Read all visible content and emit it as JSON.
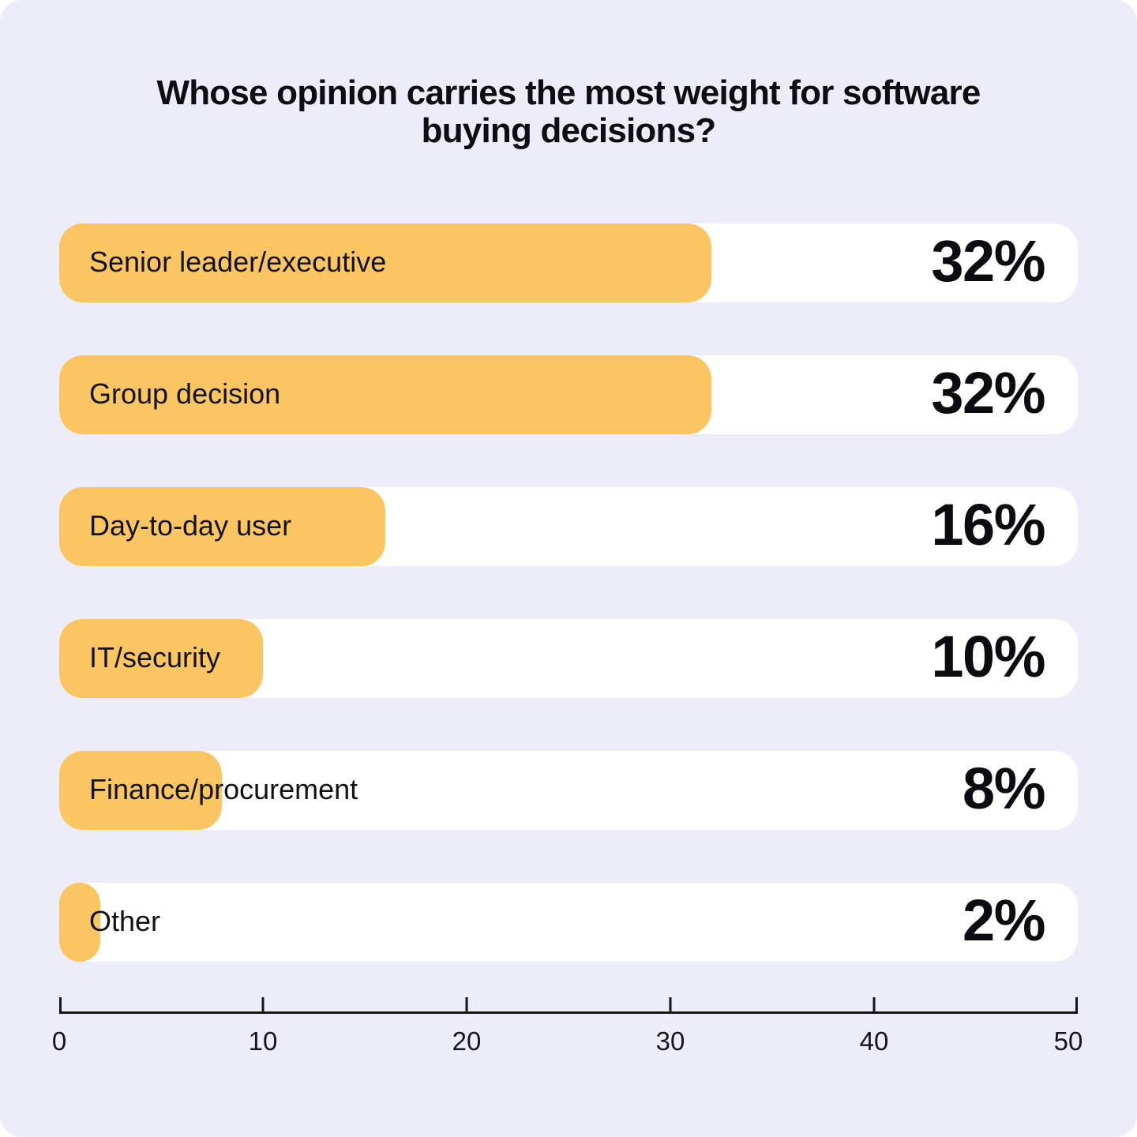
{
  "title": "Whose opinion carries the most weight for software buying decisions?",
  "colors": {
    "page_background": "#ffffff",
    "card_background": "#edecf9",
    "bar_track": "#ffffff",
    "bar_fill": "#fbc661",
    "text": "#0e0e12",
    "axis": "#14141a"
  },
  "chart_data": {
    "type": "bar",
    "orientation": "horizontal",
    "title": "Whose opinion carries the most weight for software buying decisions?",
    "categories": [
      "Senior leader/executive",
      "Group decision",
      "Day-to-day user",
      "IT/security",
      "Finance/procurement",
      "Other"
    ],
    "values": [
      32,
      32,
      16,
      10,
      8,
      2
    ],
    "value_labels": [
      "32%",
      "32%",
      "16%",
      "10%",
      "8%",
      "2%"
    ],
    "xlabel": "",
    "ylabel": "",
    "xlim": [
      0,
      50
    ],
    "x_ticks": [
      0,
      10,
      20,
      30,
      40,
      50
    ],
    "grid": "off",
    "legend": "none"
  }
}
